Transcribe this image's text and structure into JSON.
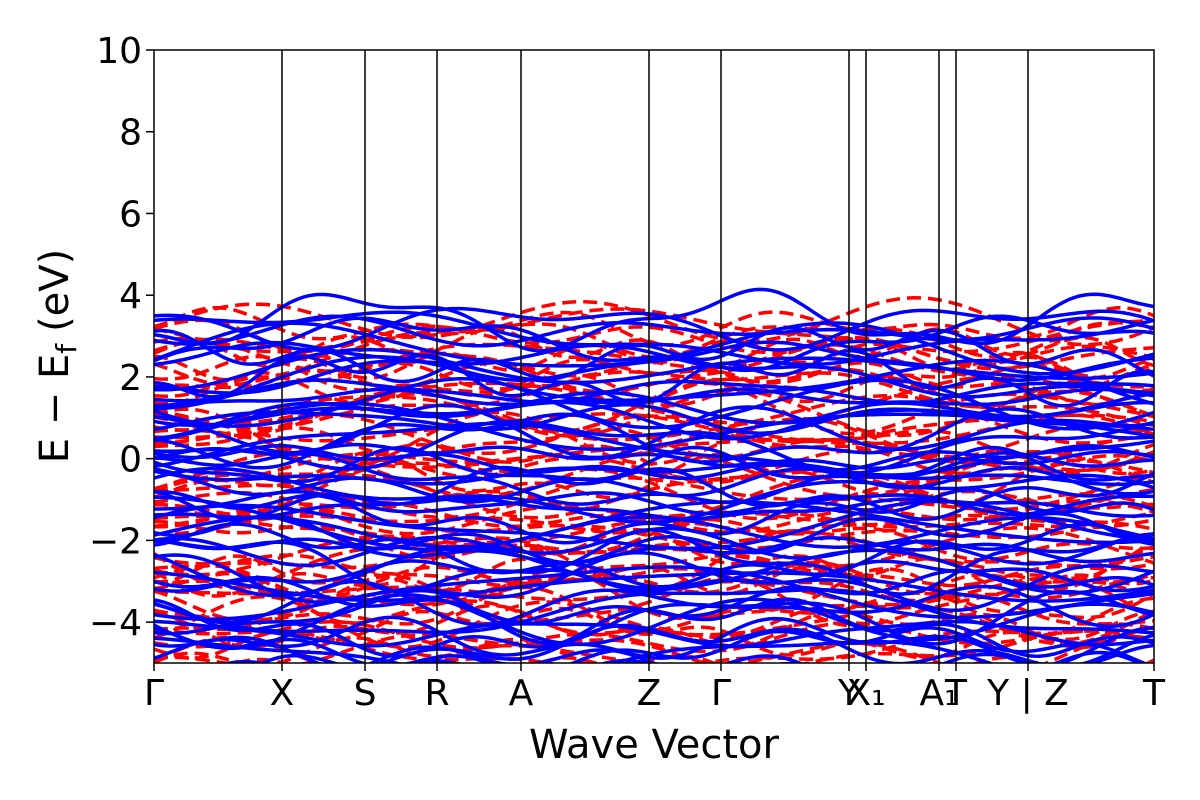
{
  "chart_data": {
    "type": "line",
    "xlabel": "Wave Vector",
    "ylabel": "E − E",
    "ylabel_subscript": "f",
    "ylabel_unit": "(eV)",
    "ylim": [
      -5,
      10
    ],
    "yticks": [
      -4,
      -2,
      0,
      2,
      4,
      6,
      8,
      10
    ],
    "ytick_labels": [
      "−4",
      "−2",
      "0",
      "2",
      "4",
      "6",
      "8",
      "10"
    ],
    "xlim": [
      0,
      10
    ],
    "kpoints": [
      {
        "pos": 0.0,
        "label": "Γ"
      },
      {
        "pos": 1.28,
        "label": "X"
      },
      {
        "pos": 2.11,
        "label": "S"
      },
      {
        "pos": 2.83,
        "label": "R"
      },
      {
        "pos": 3.67,
        "label": "A"
      },
      {
        "pos": 4.95,
        "label": "Z"
      },
      {
        "pos": 5.67,
        "label": "Γ"
      },
      {
        "pos": 6.95,
        "label": "Y"
      },
      {
        "pos": 7.12,
        "label": "X₁"
      },
      {
        "pos": 7.85,
        "label": "A₁"
      },
      {
        "pos": 8.02,
        "label": "T"
      },
      {
        "pos": 8.74,
        "label": "Y | Z"
      },
      {
        "pos": 10.0,
        "label": "T"
      }
    ],
    "grid": false,
    "series": [
      {
        "color": "#ff0000",
        "style": "dashed",
        "bands": 60
      },
      {
        "color": "#0000ff",
        "style": "solid",
        "bands": 60
      }
    ],
    "band_window": {
      "ymin": -5.2,
      "ymax": 3.5
    }
  }
}
